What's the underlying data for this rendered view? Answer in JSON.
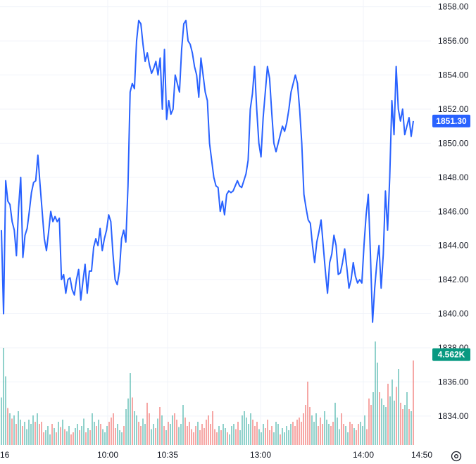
{
  "chart_data": {
    "type": "line",
    "title": "",
    "xlabel": "",
    "ylabel": "",
    "y_ticks": [
      "1858.00",
      "1856.00",
      "1854.00",
      "1852.00",
      "1850.00",
      "1848.00",
      "1846.00",
      "1844.00",
      "1842.00",
      "1840.00",
      "1838.00",
      "1836.00",
      "1834.00"
    ],
    "x_ticks": [
      "16",
      "10:00",
      "10:35",
      "13:00",
      "14:00",
      "14:50"
    ],
    "ylim": [
      1832.3,
      1858.4
    ],
    "grid": true,
    "line_color": "#2962ff",
    "up_color": "#26a69a",
    "down_color": "#ef5350",
    "last_price_label": "1851.30",
    "last_price_color": "#2962ff",
    "last_price_value": 1851.3,
    "volume_label": "4.562K",
    "volume_label_color": "#089981",
    "volume_label_value": 1837.6,
    "price_series": {
      "name": "",
      "values": [
        1844.9,
        1840.0,
        1847.8,
        1846.6,
        1846.4,
        1845.4,
        1844.9,
        1843.4,
        1846.2,
        1848.0,
        1843.3,
        1844.6,
        1845.0,
        1846.0,
        1847.1,
        1847.7,
        1847.8,
        1849.3,
        1847.6,
        1846.0,
        1844.4,
        1843.7,
        1844.8,
        1846.0,
        1845.4,
        1845.7,
        1845.4,
        1845.6,
        1842.0,
        1842.3,
        1841.2,
        1842.0,
        1842.1,
        1841.4,
        1841.1,
        1842.0,
        1842.6,
        1840.8,
        1841.9,
        1842.9,
        1841.2,
        1842.5,
        1842.5,
        1843.9,
        1844.4,
        1844.0,
        1845.0,
        1843.7,
        1844.4,
        1844.9,
        1845.8,
        1845.4,
        1843.5,
        1842.0,
        1841.7,
        1842.5,
        1844.4,
        1844.9,
        1844.2,
        1847.5,
        1853.0,
        1853.5,
        1853.2,
        1856.0,
        1857.2,
        1857.0,
        1855.8,
        1854.8,
        1855.3,
        1854.6,
        1854.1,
        1854.4,
        1854.8,
        1854.0,
        1855.0,
        1852.0,
        1855.5,
        1851.4,
        1852.5,
        1851.7,
        1852.0,
        1854.0,
        1853.5,
        1853.0,
        1855.5,
        1857.0,
        1857.2,
        1856.0,
        1855.8,
        1855.3,
        1854.5,
        1854.0,
        1852.7,
        1855.0,
        1854.0,
        1853.0,
        1852.5,
        1850.0,
        1849.0,
        1848.0,
        1847.5,
        1847.4,
        1846.0,
        1846.6,
        1845.8,
        1847.0,
        1847.2,
        1847.1,
        1847.2,
        1847.5,
        1847.8,
        1847.5,
        1847.4,
        1847.8,
        1848.2,
        1849.0,
        1852.0,
        1852.9,
        1854.5,
        1852.0,
        1850.0,
        1849.2,
        1851.5,
        1853.0,
        1854.5,
        1853.8,
        1851.8,
        1850.0,
        1849.5,
        1850.0,
        1850.5,
        1851.0,
        1850.7,
        1851.2,
        1852.0,
        1853.0,
        1853.5,
        1854.0,
        1853.5,
        1852.0,
        1850.0,
        1847.0,
        1846.2,
        1845.5,
        1845.3,
        1844.0,
        1843.0,
        1844.2,
        1844.8,
        1845.5,
        1844.0,
        1842.5,
        1841.2,
        1843.0,
        1843.5,
        1844.6,
        1844.0,
        1842.3,
        1842.4,
        1843.0,
        1843.8,
        1842.7,
        1841.5,
        1842.0,
        1843.0,
        1842.2,
        1841.8,
        1842.0,
        1841.8,
        1844.0,
        1845.8,
        1847.0,
        1843.5,
        1839.5,
        1841.5,
        1843.0,
        1844.0,
        1841.5,
        1843.5,
        1847.2,
        1844.9,
        1848.0,
        1852.5,
        1850.5,
        1854.5,
        1852.0,
        1851.3,
        1852.0,
        1850.5,
        1851.0,
        1851.5,
        1850.4,
        1851.3
      ]
    },
    "volume_series": {
      "name": "",
      "values": [
        0.45,
        0.92,
        0.65,
        0.35,
        0.3,
        0.25,
        0.28,
        0.2,
        0.32,
        0.24,
        0.18,
        0.22,
        0.15,
        0.24,
        0.2,
        0.28,
        0.22,
        0.3,
        0.2,
        0.22,
        0.12,
        0.14,
        0.18,
        0.1,
        0.2,
        0.16,
        0.12,
        0.22,
        0.17,
        0.24,
        0.15,
        0.13,
        0.18,
        0.1,
        0.12,
        0.16,
        0.2,
        0.14,
        0.18,
        0.25,
        0.12,
        0.16,
        0.14,
        0.3,
        0.22,
        0.18,
        0.24,
        0.2,
        0.15,
        0.12,
        0.18,
        0.22,
        0.26,
        0.3,
        0.16,
        0.2,
        0.14,
        0.12,
        0.18,
        0.34,
        0.44,
        0.68,
        0.45,
        0.32,
        0.28,
        0.22,
        0.18,
        0.25,
        0.2,
        0.4,
        0.3,
        0.15,
        0.2,
        0.16,
        0.25,
        0.36,
        0.28,
        0.18,
        0.14,
        0.22,
        0.2,
        0.28,
        0.3,
        0.24,
        0.17,
        0.2,
        0.38,
        0.26,
        0.18,
        0.22,
        0.15,
        0.12,
        0.18,
        0.22,
        0.14,
        0.2,
        0.16,
        0.24,
        0.28,
        0.2,
        0.32,
        0.15,
        0.12,
        0.18,
        0.14,
        0.2,
        0.16,
        0.12,
        0.1,
        0.18,
        0.2,
        0.15,
        0.22,
        0.14,
        0.28,
        0.32,
        0.26,
        0.2,
        0.3,
        0.24,
        0.18,
        0.22,
        0.15,
        0.12,
        0.2,
        0.16,
        0.24,
        0.14,
        0.18,
        0.12,
        0.22,
        0.2,
        0.1,
        0.16,
        0.12,
        0.18,
        0.14,
        0.2,
        0.22,
        0.18,
        0.24,
        0.26,
        0.22,
        0.3,
        0.38,
        0.6,
        0.36,
        0.28,
        0.22,
        0.3,
        0.18,
        0.26,
        0.2,
        0.32,
        0.24,
        0.2,
        0.18,
        0.22,
        0.4,
        0.26,
        0.15,
        0.3,
        0.2,
        0.18,
        0.12,
        0.22,
        0.2,
        0.16,
        0.14,
        0.2,
        0.22,
        0.18,
        0.28,
        0.15,
        0.44,
        0.38,
        0.5,
        0.98,
        0.78,
        0.5,
        0.44,
        0.38,
        0.36,
        0.58,
        0.46,
        0.62,
        0.42,
        0.55,
        0.72,
        0.4,
        0.34,
        0.38,
        0.5,
        0.34,
        0.32,
        0.8
      ],
      "up": [
        true,
        true,
        true,
        false,
        true,
        false,
        true,
        false,
        true,
        true,
        false,
        true,
        true,
        true,
        true,
        true,
        false,
        true,
        false,
        false,
        false,
        true,
        true,
        true,
        false,
        true,
        false,
        true,
        false,
        true,
        false,
        true,
        true,
        false,
        false,
        true,
        true,
        false,
        true,
        true,
        false,
        true,
        false,
        true,
        true,
        false,
        true,
        false,
        true,
        true,
        true,
        false,
        false,
        false,
        false,
        true,
        true,
        true,
        false,
        true,
        true,
        true,
        false,
        true,
        true,
        false,
        false,
        true,
        true,
        false,
        false,
        true,
        true,
        false,
        true,
        false,
        true,
        false,
        true,
        false,
        true,
        true,
        false,
        false,
        true,
        true,
        true,
        false,
        false,
        false,
        false,
        false,
        false,
        true,
        false,
        false,
        false,
        false,
        false,
        false,
        false,
        false,
        false,
        true,
        false,
        true,
        true,
        false,
        true,
        true,
        true,
        false,
        false,
        true,
        true,
        true,
        true,
        true,
        true,
        false,
        false,
        false,
        true,
        true,
        true,
        false,
        false,
        false,
        false,
        true,
        true,
        true,
        false,
        true,
        true,
        true,
        true,
        true,
        false,
        false,
        false,
        false,
        false,
        false,
        false,
        false,
        false,
        true,
        true,
        true,
        false,
        false,
        false,
        true,
        true,
        true,
        false,
        false,
        true,
        true,
        true,
        false,
        false,
        true,
        true,
        false,
        false,
        true,
        false,
        false,
        true,
        true,
        true,
        false,
        false,
        false,
        true,
        true,
        true,
        false,
        true,
        true,
        true,
        false,
        true,
        true,
        true,
        false,
        true,
        false,
        false,
        true,
        true,
        false,
        true
      ]
    }
  }
}
